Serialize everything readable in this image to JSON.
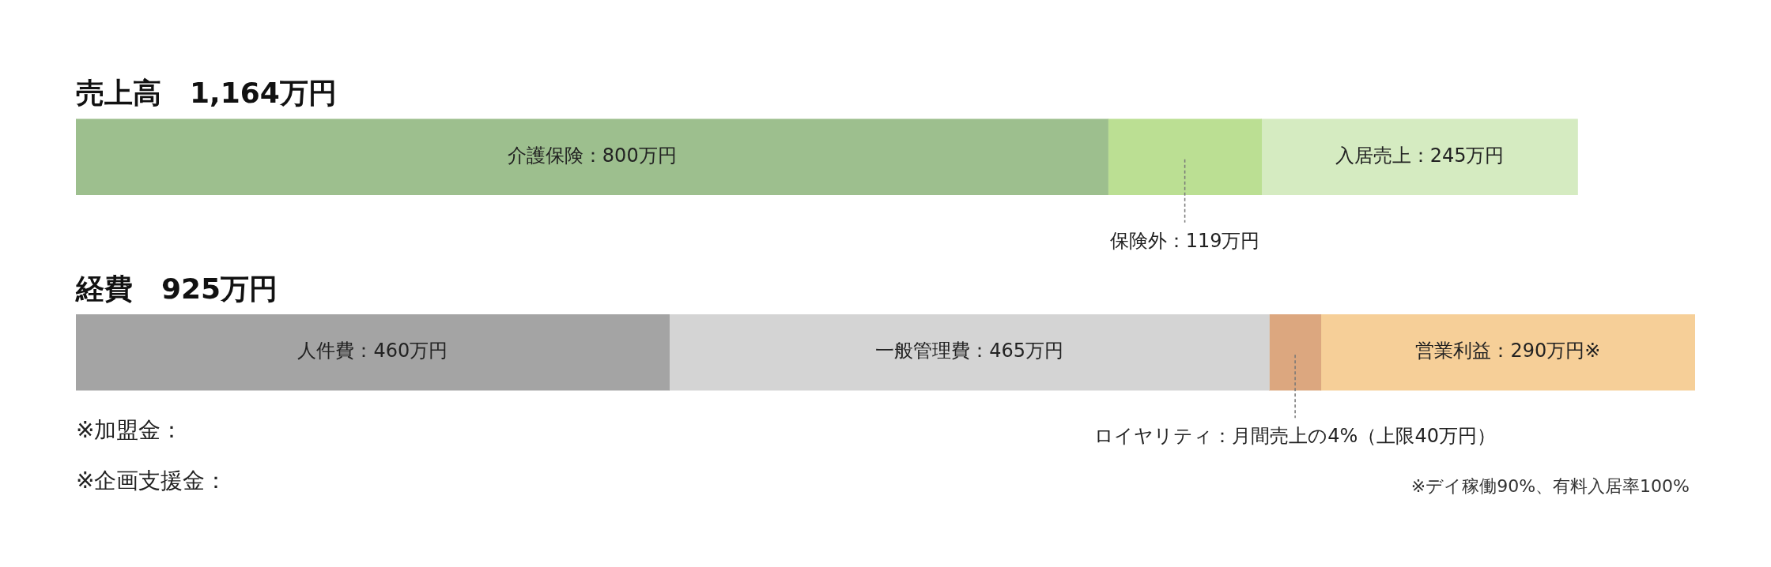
{
  "chart_data": {
    "type": "bar",
    "orientation": "horizontal",
    "stacked": true,
    "categories": [
      "売上高　1,164万円",
      "経費　925万円"
    ],
    "xlim": [
      0,
      1255
    ],
    "tick_labels": false,
    "legend": false,
    "series": [
      {
        "color": "#9dbf8e",
        "values": [
          800,
          null
        ],
        "value_labels": [
          "介護保険：800万円",
          null
        ]
      },
      {
        "color": "#bbdf93",
        "values": [
          119,
          null
        ],
        "value_labels": [
          "保険外：119万円",
          null
        ]
      },
      {
        "color": "#d5ebc1",
        "values": [
          245,
          null
        ],
        "value_labels": [
          "入居売上：245万円",
          null
        ]
      },
      {
        "color": "#a4a4a4",
        "values": [
          null,
          460
        ],
        "value_labels": [
          null,
          "人件費：460万円"
        ]
      },
      {
        "color": "#d4d4d4",
        "values": [
          null,
          465
        ],
        "value_labels": [
          null,
          "一般管理費：465万円"
        ]
      },
      {
        "color": "#dca77f",
        "values": [
          null,
          40
        ],
        "value_labels": [
          null,
          "ロイヤリティ：月間売上の4%（上限40万円）"
        ]
      },
      {
        "color": "#f6cf98",
        "values": [
          null,
          290
        ],
        "value_labels": [
          null,
          "営業利益：290万円※"
        ]
      }
    ],
    "annotations": [
      "※加盟金：",
      "※企画支援金：",
      "※デイ稼働90%、有料入居率100%"
    ]
  }
}
